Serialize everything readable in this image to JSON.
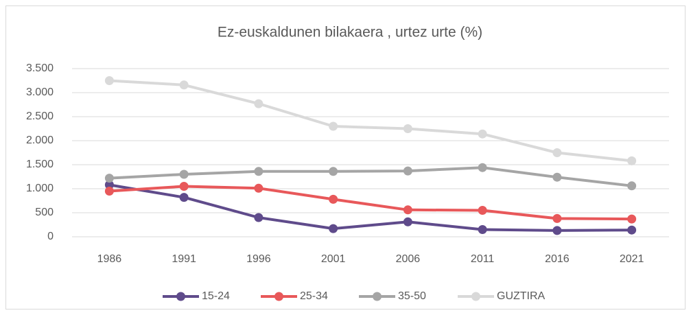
{
  "chart_data": {
    "type": "line",
    "title": "Ez-euskaldunen bilakaera , urtez urte (%)",
    "categories": [
      "1986",
      "1991",
      "1996",
      "2001",
      "2006",
      "2011",
      "2016",
      "2021"
    ],
    "series": [
      {
        "name": "15-24",
        "color": "#5f4b8b",
        "values": [
          1080,
          820,
          400,
          170,
          310,
          150,
          130,
          140
        ]
      },
      {
        "name": "25-34",
        "color": "#e8585a",
        "values": [
          950,
          1050,
          1010,
          780,
          560,
          550,
          380,
          370
        ]
      },
      {
        "name": "35-50",
        "color": "#a5a5a5",
        "values": [
          1220,
          1300,
          1360,
          1360,
          1370,
          1440,
          1240,
          1060
        ]
      },
      {
        "name": "GUZTIRA",
        "color": "#d9d9d9",
        "values": [
          3250,
          3160,
          2770,
          2300,
          2250,
          2140,
          1750,
          1580
        ]
      }
    ],
    "ylim": [
      0,
      3500
    ],
    "yticks": [
      0,
      500,
      {
        "value": 1000,
        "label": "1.000"
      },
      {
        "value": 1500,
        "label": "1.500"
      },
      {
        "value": 2000,
        "label": "2.000"
      },
      {
        "value": 2500,
        "label": "2.500"
      },
      {
        "value": 3000,
        "label": "3.000"
      },
      {
        "value": 3500,
        "label": "3.500"
      }
    ],
    "grid": true,
    "legend": "bottom"
  }
}
